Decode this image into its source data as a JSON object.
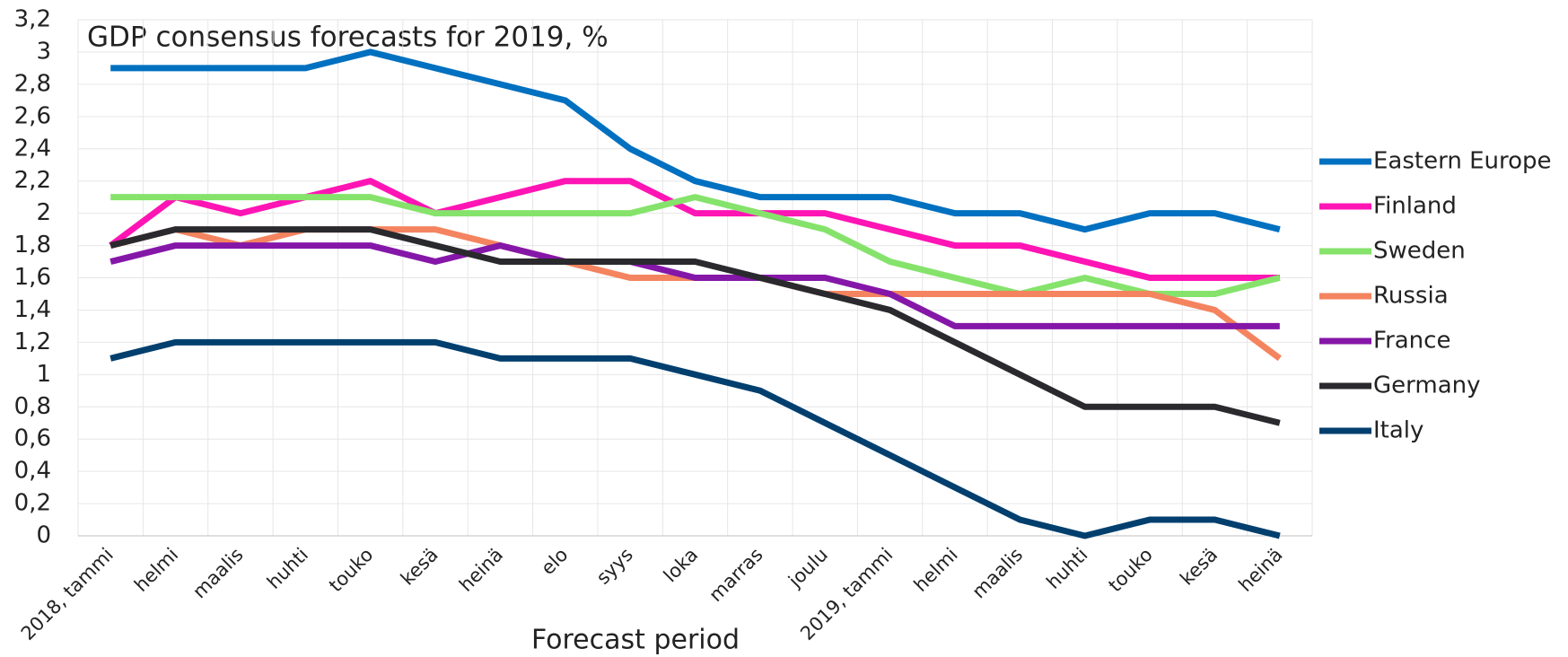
{
  "chart_data": {
    "type": "line",
    "title": "GDP consensus forecasts for 2019, %",
    "x_label": "Forecast period",
    "categories": [
      "2018, tammi",
      "helmi",
      "maalis",
      "huhti",
      "touko",
      "kesä",
      "heinä",
      "elo",
      "syys",
      "loka",
      "marras",
      "joulu",
      "2019, tammi",
      "helmi",
      "maalis",
      "huhti",
      "touko",
      "kesä",
      "heinä"
    ],
    "series": [
      {
        "name": "Eastern Europe",
        "color": "#0070c0",
        "values": [
          2.9,
          2.9,
          2.9,
          2.9,
          3.0,
          2.9,
          2.8,
          2.7,
          2.4,
          2.2,
          2.1,
          2.1,
          2.1,
          2.0,
          2.0,
          1.9,
          2.0,
          2.0,
          1.9
        ]
      },
      {
        "name": "Finland",
        "color": "#ff14b4",
        "values": [
          1.8,
          2.1,
          2.0,
          2.1,
          2.2,
          2.0,
          2.1,
          2.2,
          2.2,
          2.0,
          2.0,
          2.0,
          1.9,
          1.8,
          1.8,
          1.7,
          1.6,
          1.6,
          1.6
        ]
      },
      {
        "name": "Sweden",
        "color": "#85e36b",
        "values": [
          2.1,
          2.1,
          2.1,
          2.1,
          2.1,
          2.0,
          2.0,
          2.0,
          2.0,
          2.1,
          2.0,
          1.9,
          1.7,
          1.6,
          1.5,
          1.6,
          1.5,
          1.5,
          1.6
        ]
      },
      {
        "name": "Russia",
        "color": "#f4845f",
        "values": [
          1.8,
          1.9,
          1.8,
          1.9,
          1.9,
          1.9,
          1.8,
          1.7,
          1.6,
          1.6,
          1.6,
          1.5,
          1.5,
          1.5,
          1.5,
          1.5,
          1.5,
          1.4,
          1.1
        ]
      },
      {
        "name": "France",
        "color": "#8517a8",
        "values": [
          1.7,
          1.8,
          1.8,
          1.8,
          1.8,
          1.7,
          1.8,
          1.7,
          1.7,
          1.6,
          1.6,
          1.6,
          1.5,
          1.3,
          1.3,
          1.3,
          1.3,
          1.3,
          1.3
        ]
      },
      {
        "name": "Germany",
        "color": "#2a2a2e",
        "values": [
          1.8,
          1.9,
          1.9,
          1.9,
          1.9,
          1.8,
          1.7,
          1.7,
          1.7,
          1.7,
          1.6,
          1.5,
          1.4,
          1.2,
          1.0,
          0.8,
          0.8,
          0.8,
          0.7
        ]
      },
      {
        "name": "Italy",
        "color": "#003f6e",
        "values": [
          1.1,
          1.2,
          1.2,
          1.2,
          1.2,
          1.2,
          1.1,
          1.1,
          1.1,
          1.0,
          0.9,
          0.7,
          0.5,
          0.3,
          0.1,
          0.0,
          0.1,
          0.1,
          0.0
        ]
      }
    ],
    "ylim": [
      0,
      3.2
    ],
    "yticks": [
      0,
      {
        "value": 0.2,
        "label": "0,2"
      },
      {
        "value": 0.4,
        "label": "0,4"
      },
      {
        "value": 0.6,
        "label": "0,6"
      },
      {
        "value": 0.8,
        "label": "0,8"
      },
      1,
      {
        "value": 1.2,
        "label": "1,2"
      },
      {
        "value": 1.4,
        "label": "1,4"
      },
      {
        "value": 1.6,
        "label": "1,6"
      },
      {
        "value": 1.8,
        "label": "1,8"
      },
      2,
      {
        "value": 2.2,
        "label": "2,2"
      },
      {
        "value": 2.4,
        "label": "2,4"
      },
      {
        "value": 2.6,
        "label": "2,6"
      },
      {
        "value": 2.8,
        "label": "2,8"
      },
      3,
      {
        "value": 3.2,
        "label": "3,2"
      }
    ],
    "grid": true,
    "legend": "right"
  }
}
